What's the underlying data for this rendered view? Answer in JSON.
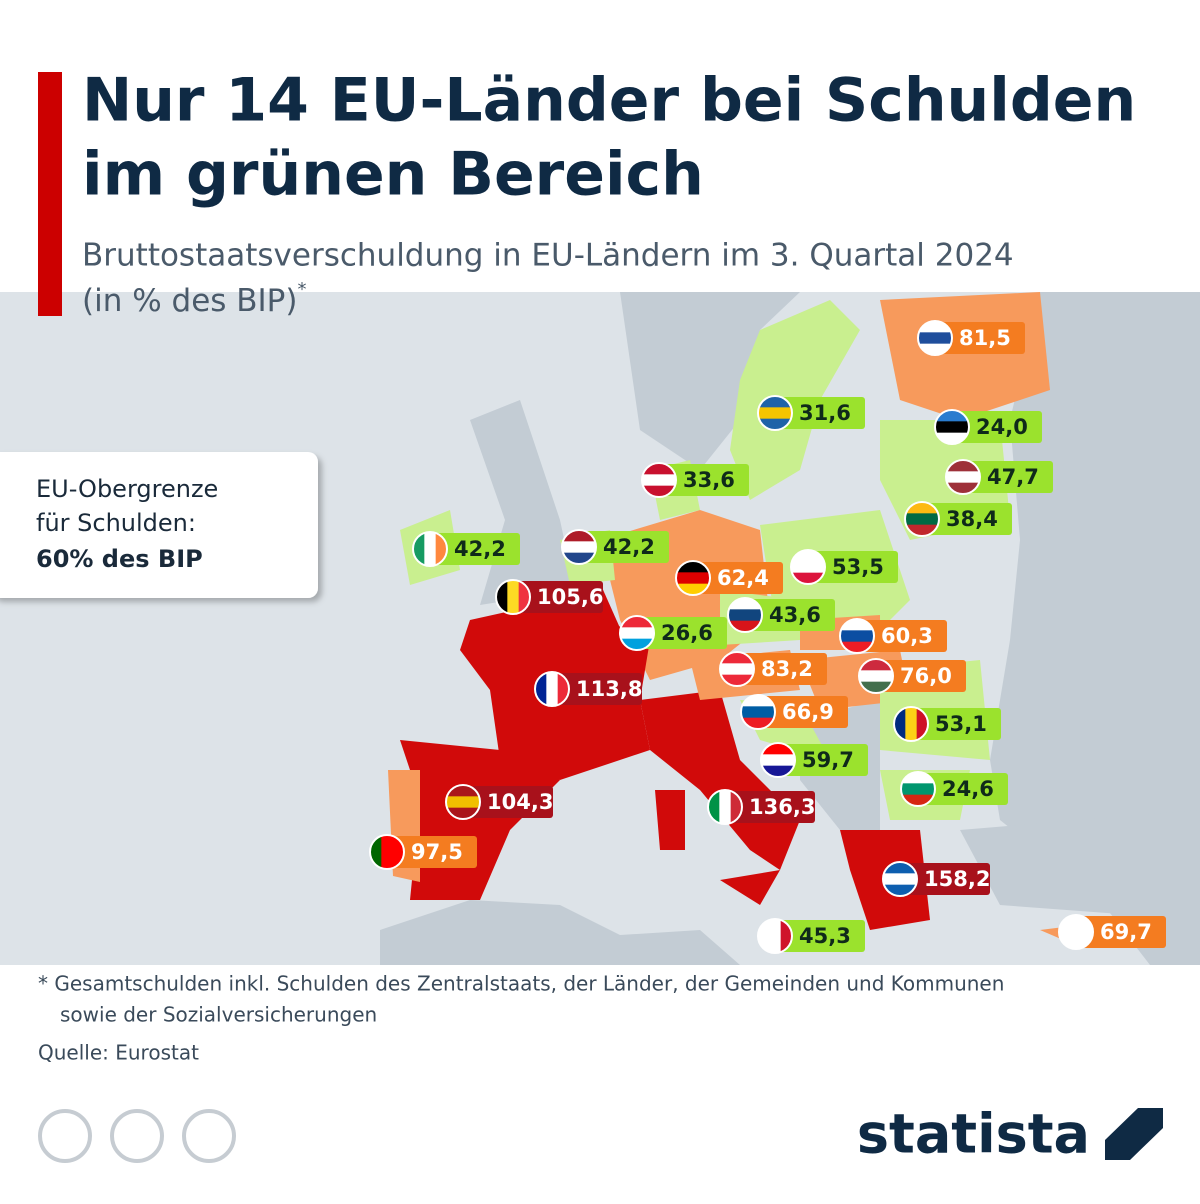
{
  "header": {
    "title": [
      "Nur 14 EU-Länder bei Schulden",
      "im grünen Bereich"
    ],
    "subtitle": [
      "Bruttostaatsverschuldung in EU-Ländern im 3. Quartal 2024",
      "(in % des BIP)"
    ],
    "subtitle_mark": "*"
  },
  "callout": {
    "line1": "EU-Obergrenze",
    "line2": "für Schulden:",
    "line3": "60% des BIP"
  },
  "chart_data": {
    "type": "map",
    "values": [
      81.5,
      31.6,
      24.0,
      47.7,
      38.4,
      33.6,
      42.2,
      42.2,
      62.4,
      53.5,
      105.6,
      43.6,
      26.6,
      60.3,
      83.2,
      76.0,
      113.8,
      66.9,
      53.1,
      59.7,
      24.6,
      104.3,
      136.3,
      97.5,
      158.2,
      45.3,
      69.7
    ],
    "value_labels": [
      "81,5",
      "31,6",
      "24,0",
      "47,7",
      "38,4",
      "33,6",
      "42,2",
      "42,2",
      "62,4",
      "53,5",
      "105,6",
      "43,6",
      "26,6",
      "60,3",
      "83,2",
      "76,0",
      "113,8",
      "66,9",
      "53,1",
      "59,7",
      "24,6",
      "104,3",
      "136,3",
      "97,5",
      "158,2",
      "45,3",
      "69,7"
    ],
    "colors": [
      "#f47c20",
      "#9be22d",
      "#9be22d",
      "#9be22d",
      "#9be22d",
      "#9be22d",
      "#9be22d",
      "#9be22d",
      "#f47c20",
      "#9be22d",
      "#a8111b",
      "#9be22d",
      "#9be22d",
      "#f47c20",
      "#f47c20",
      "#f47c20",
      "#a8111b",
      "#f47c20",
      "#9be22d",
      "#9be22d",
      "#9be22d",
      "#a8111b",
      "#a8111b",
      "#f47c20",
      "#a8111b",
      "#9be22d",
      "#f47c20"
    ]
  },
  "footer": {
    "note": [
      "* Gesamtschulden inkl. Schulden des Zentralstaats, der Länder, der Gemeinden und Kommunen",
      "sowie der Sozialversicherungen"
    ],
    "source": "Quelle: Eurostat",
    "brand": "statista"
  }
}
